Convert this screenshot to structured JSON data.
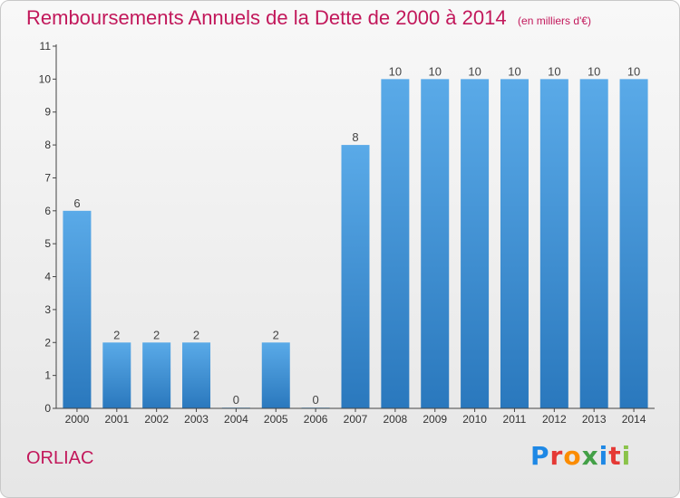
{
  "header": {
    "title": "Remboursements Annuels de la Dette de 2000 à 2014",
    "unit": "(en milliers d'€)"
  },
  "footer": {
    "commune": "ORLIAC",
    "brand": {
      "letters": [
        "P",
        "r",
        "o",
        "x",
        "i",
        "t",
        "i"
      ],
      "colors": [
        "#1e88e5",
        "#e53935",
        "#fb8c00",
        "#43a047",
        "#1e88e5",
        "#e53935",
        "#8bc34a"
      ]
    }
  },
  "colors": {
    "bar_light": "#5aaae8",
    "bar_dark": "#2a78bd",
    "axis": "#444444",
    "title": "#c2185b"
  },
  "chart_data": {
    "type": "bar",
    "categories": [
      "2000",
      "2001",
      "2002",
      "2003",
      "2004",
      "2005",
      "2006",
      "2007",
      "2008",
      "2009",
      "2010",
      "2011",
      "2012",
      "2013",
      "2014"
    ],
    "values": [
      6,
      2,
      2,
      2,
      0,
      2,
      0,
      8,
      10,
      10,
      10,
      10,
      10,
      10,
      10
    ],
    "data_labels": [
      "6",
      "2",
      "2",
      "2",
      "0",
      "2",
      "0",
      "8",
      "10",
      "10",
      "10",
      "10",
      "10",
      "10",
      "10"
    ],
    "y_ticks": [
      0,
      1,
      2,
      3,
      4,
      5,
      6,
      7,
      8,
      9,
      10,
      11
    ],
    "ylim": [
      0,
      11
    ],
    "grid": false,
    "legend": "none",
    "title": "Remboursements Annuels de la Dette de 2000 à 2014",
    "xlabel": "",
    "ylabel": ""
  }
}
